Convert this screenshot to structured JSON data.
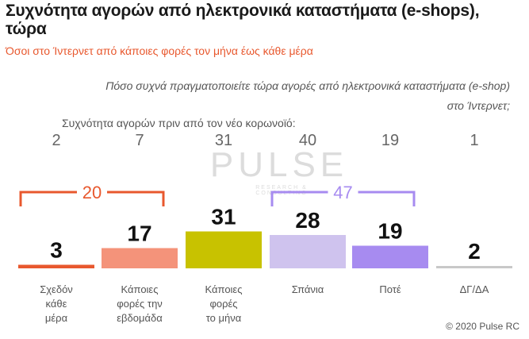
{
  "title": "Συχνότητα αγορών από ηλεκτρονικά καταστήματα (e-shops), τώρα",
  "subtitle": "Όσοι στο Ίντερνετ από κάποιες φορές τον μήνα έως κάθε μέρα",
  "question": "Πόσο συχνά πραγματοποιείτε τώρα αγορές από ηλεκτρονικά καταστήματα (e-shop) στο Ίντερνετ;",
  "previous_label": "Συχνότητα αγορών πριν από τον νέο κορωνοϊό:",
  "watermark": "PULSE",
  "watermark_sub": "RESEARCH & CONSULTING",
  "footer": "© 2020 Pulse RC",
  "chart_data": {
    "type": "bar",
    "categories": [
      [
        "Σχεδόν",
        "κάθε",
        "μέρα"
      ],
      [
        "Κάποιες",
        "φορές την",
        "εβδομάδα"
      ],
      [
        "Κάποιες",
        "φορές",
        "το μήνα"
      ],
      [
        "Σπάνια"
      ],
      [
        "Ποτέ"
      ],
      [
        "ΔΓ/ΔΑ"
      ]
    ],
    "values": [
      3,
      17,
      31,
      28,
      19,
      2
    ],
    "previous": [
      2,
      7,
      31,
      40,
      19,
      1
    ],
    "colors": [
      "#e8582e",
      "#f4937a",
      "#c8c200",
      "#cfc3ee",
      "#a78bf0",
      "#c8c8c8"
    ],
    "groups": [
      {
        "label": "20",
        "from": 0,
        "to": 1,
        "color": "#e8582e"
      },
      {
        "label": "47",
        "from": 3,
        "to": 4,
        "color": "#a78bf0"
      }
    ]
  }
}
